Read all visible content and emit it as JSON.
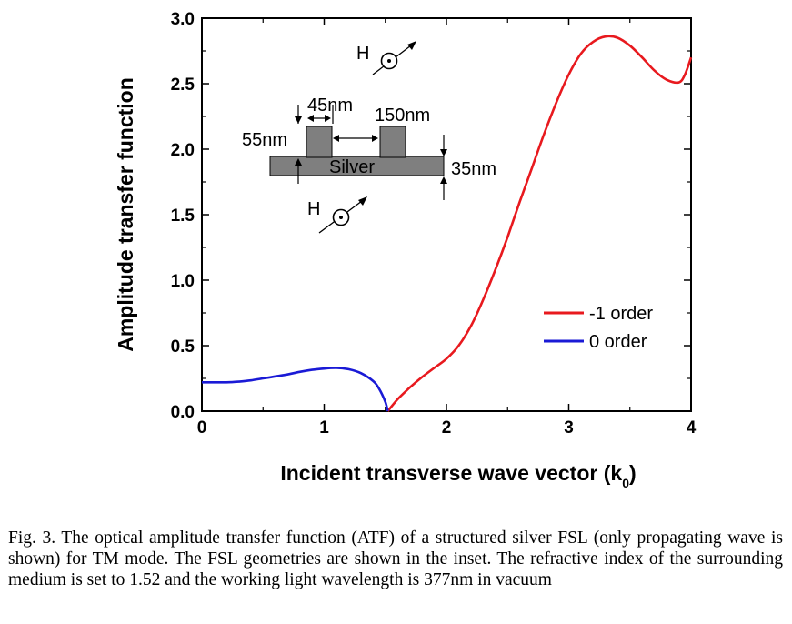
{
  "chart_data": {
    "type": "line",
    "xlabel": "Incident transverse wave vector (k",
    "xlabel_sub": "0",
    "xlabel_end": ")",
    "ylabel": "Amplitude transfer function",
    "xlim": [
      0,
      4
    ],
    "ylim": [
      0.0,
      3.0
    ],
    "xticks": [
      "0",
      "1",
      "2",
      "3",
      "4"
    ],
    "yticks": [
      "0.0",
      "0.5",
      "1.0",
      "1.5",
      "2.0",
      "2.5",
      "3.0"
    ],
    "grid": false,
    "legend_position": "center-right",
    "series": [
      {
        "name": "-1 order",
        "color": "#e8191e",
        "x": [
          1.52,
          1.6,
          1.7,
          1.8,
          1.9,
          2.0,
          2.1,
          2.2,
          2.3,
          2.4,
          2.5,
          2.6,
          2.7,
          2.8,
          2.9,
          3.0,
          3.1,
          3.2,
          3.3,
          3.4,
          3.5,
          3.6,
          3.7,
          3.8,
          3.9,
          3.95,
          4.0
        ],
        "y": [
          0.0,
          0.09,
          0.18,
          0.26,
          0.33,
          0.4,
          0.5,
          0.65,
          0.85,
          1.08,
          1.33,
          1.6,
          1.86,
          2.12,
          2.36,
          2.57,
          2.73,
          2.82,
          2.86,
          2.85,
          2.79,
          2.7,
          2.6,
          2.53,
          2.51,
          2.57,
          2.7
        ]
      },
      {
        "name": "0 order",
        "color": "#1a1ad6",
        "x": [
          0.0,
          0.1,
          0.2,
          0.3,
          0.4,
          0.5,
          0.6,
          0.7,
          0.8,
          0.9,
          1.0,
          1.1,
          1.2,
          1.3,
          1.4,
          1.45,
          1.5,
          1.52
        ],
        "y": [
          0.22,
          0.22,
          0.22,
          0.225,
          0.235,
          0.25,
          0.265,
          0.28,
          0.3,
          0.315,
          0.325,
          0.33,
          0.32,
          0.29,
          0.23,
          0.17,
          0.07,
          0.0
        ]
      }
    ]
  },
  "inset": {
    "material_label": "Silver",
    "dim_width": "45nm",
    "dim_gap": "150nm",
    "dim_height": "55nm",
    "dim_thickness": "35nm",
    "field_label": "H"
  },
  "caption": "Fig. 3. The optical amplitude transfer function (ATF) of a structured silver FSL (only propagating wave is shown) for TM mode. The FSL geometries are shown in the inset. The refractive index of the surrounding medium is set to 1.52 and the working light wavelength is 377nm in vacuum"
}
